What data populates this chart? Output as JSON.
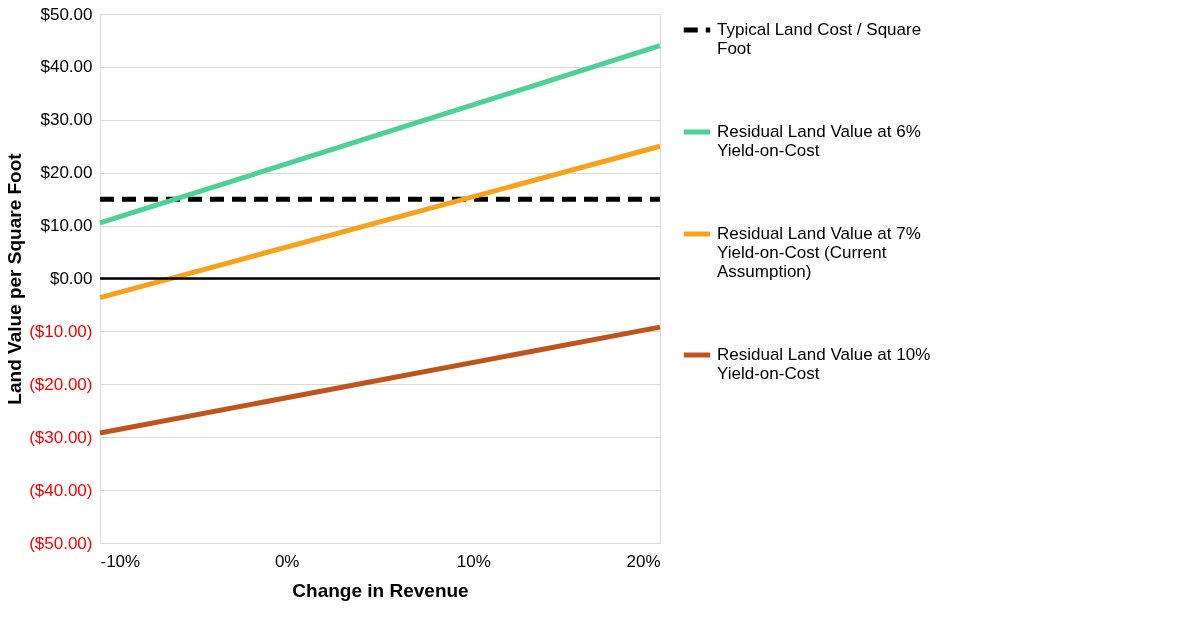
{
  "chart_data": {
    "type": "line",
    "xlabel": "Change in Revenue",
    "ylabel": "Land Value per Square Foot",
    "x": [
      -10,
      20
    ],
    "series": [
      {
        "name": "Typical Land Cost / Square Foot",
        "color": "#000000",
        "values": [
          15,
          15
        ],
        "line_style": "dashed"
      },
      {
        "name": "Residual Land Value at 6% Yield-on-Cost",
        "color": "#4dd196",
        "values": [
          10.5,
          44
        ]
      },
      {
        "name": "Residual Land Value at 7% Yield-on-Cost (Current Assumption)",
        "color": "#f9a11b",
        "values": [
          -3.6,
          25
        ]
      },
      {
        "name": "Residual Land Value at 10% Yield-on-Cost",
        "color": "#c0541f",
        "values": [
          -29.2,
          -9.2
        ]
      }
    ],
    "xlim": [
      -10,
      20
    ],
    "xticks": [
      {
        "value": -10,
        "label": "-10%"
      },
      {
        "value": 0,
        "label": "0%"
      },
      {
        "value": 10,
        "label": "10%"
      },
      {
        "value": 20,
        "label": "20%"
      }
    ],
    "ylim": [
      -50,
      50
    ],
    "yticks": [
      {
        "value": -50,
        "label": "($50.00)"
      },
      {
        "value": -40,
        "label": "($40.00)"
      },
      {
        "value": -30,
        "label": "($30.00)"
      },
      {
        "value": -20,
        "label": "($20.00)"
      },
      {
        "value": -10,
        "label": "($10.00)"
      },
      {
        "value": 0,
        "label": "$0.00"
      },
      {
        "value": 10,
        "label": "$10.00"
      },
      {
        "value": 20,
        "label": "$20.00"
      },
      {
        "value": 30,
        "label": "$30.00"
      },
      {
        "value": 40,
        "label": "$40.00"
      },
      {
        "value": 50,
        "label": "$50.00"
      }
    ],
    "ref_lines": [
      {
        "axis": "y",
        "value": 0,
        "color": "#000000"
      }
    ],
    "grid": "y",
    "legend": "right",
    "marker": "none",
    "line_style": "solid"
  }
}
